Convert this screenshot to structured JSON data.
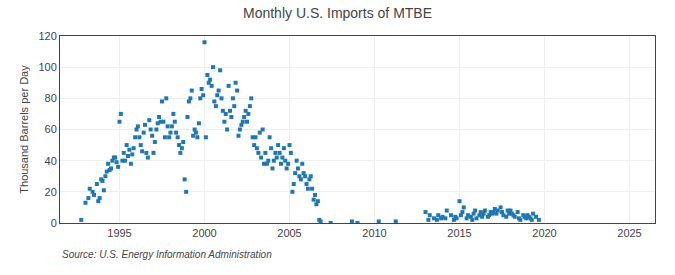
{
  "chart_data": {
    "type": "scatter",
    "title": "Monthly U.S. Imports of MTBE",
    "ylabel": "Thousand Barrels per Day",
    "annotation": "Source: U.S. Energy Information Administration",
    "marker": "square",
    "grid": true,
    "xlim": [
      1991.5,
      2026.5
    ],
    "ylim": [
      0,
      120
    ],
    "xticks": [
      1995,
      2000,
      2005,
      2010,
      2015,
      2020,
      2025
    ],
    "yticks": [
      0,
      20,
      40,
      60,
      80,
      100,
      120
    ],
    "x": [
      1992.75,
      1993.0,
      1993.17,
      1993.25,
      1993.42,
      1993.5,
      1993.67,
      1993.75,
      1993.83,
      1993.92,
      1994.0,
      1994.08,
      1994.17,
      1994.25,
      1994.33,
      1994.42,
      1994.5,
      1994.58,
      1994.67,
      1994.75,
      1994.83,
      1994.92,
      1995.0,
      1995.08,
      1995.17,
      1995.25,
      1995.33,
      1995.42,
      1995.5,
      1995.58,
      1995.67,
      1995.75,
      1995.83,
      1995.92,
      1996.0,
      1996.08,
      1996.17,
      1996.25,
      1996.33,
      1996.42,
      1996.5,
      1996.58,
      1996.67,
      1996.75,
      1996.83,
      1996.92,
      1997.0,
      1997.08,
      1997.17,
      1997.25,
      1997.33,
      1997.42,
      1997.5,
      1997.58,
      1997.67,
      1997.75,
      1997.83,
      1997.92,
      1998.0,
      1998.08,
      1998.17,
      1998.25,
      1998.33,
      1998.42,
      1998.5,
      1998.58,
      1998.67,
      1998.75,
      1998.83,
      1998.92,
      1999.0,
      1999.08,
      1999.17,
      1999.25,
      1999.33,
      1999.42,
      1999.5,
      1999.58,
      1999.67,
      1999.75,
      1999.83,
      1999.92,
      2000.0,
      2000.08,
      2000.17,
      2000.25,
      2000.33,
      2000.42,
      2000.5,
      2000.58,
      2000.67,
      2000.75,
      2000.83,
      2000.92,
      2001.0,
      2001.08,
      2001.17,
      2001.25,
      2001.33,
      2001.42,
      2001.5,
      2001.58,
      2001.67,
      2001.75,
      2001.83,
      2001.92,
      2002.0,
      2002.08,
      2002.17,
      2002.25,
      2002.33,
      2002.42,
      2002.5,
      2002.58,
      2002.67,
      2002.75,
      2002.83,
      2002.92,
      2003.0,
      2003.08,
      2003.17,
      2003.25,
      2003.33,
      2003.42,
      2003.5,
      2003.58,
      2003.67,
      2003.75,
      2003.83,
      2003.92,
      2004.0,
      2004.08,
      2004.17,
      2004.25,
      2004.33,
      2004.42,
      2004.5,
      2004.58,
      2004.67,
      2004.75,
      2004.83,
      2004.92,
      2005.0,
      2005.08,
      2005.17,
      2005.25,
      2005.33,
      2005.42,
      2005.5,
      2005.58,
      2005.67,
      2005.75,
      2005.83,
      2005.92,
      2006.0,
      2006.08,
      2006.17,
      2006.25,
      2006.33,
      2006.42,
      2006.5,
      2006.58,
      2006.67,
      2006.75,
      2006.83,
      2007.42,
      2008.67,
      2009.0,
      2010.25,
      2011.25,
      2013.0,
      2013.17,
      2013.25,
      2013.5,
      2013.67,
      2013.75,
      2013.92,
      2014.0,
      2014.17,
      2014.25,
      2014.5,
      2014.67,
      2014.75,
      2014.83,
      2015.0,
      2015.08,
      2015.17,
      2015.25,
      2015.42,
      2015.5,
      2015.67,
      2015.75,
      2015.83,
      2015.92,
      2016.0,
      2016.17,
      2016.25,
      2016.33,
      2016.42,
      2016.5,
      2016.67,
      2016.75,
      2016.83,
      2016.92,
      2017.0,
      2017.08,
      2017.17,
      2017.25,
      2017.42,
      2017.5,
      2017.58,
      2017.75,
      2017.83,
      2017.92,
      2018.0,
      2018.08,
      2018.17,
      2018.25,
      2018.42,
      2018.5,
      2018.58,
      2018.75,
      2018.83,
      2018.92,
      2019.0,
      2019.08,
      2019.17,
      2019.25,
      2019.33,
      2019.5,
      2019.67
    ],
    "values": [
      2,
      13,
      16,
      22,
      20,
      18,
      25,
      14,
      16,
      28,
      27,
      21,
      30,
      33,
      38,
      34,
      35,
      40,
      42,
      42,
      39,
      36,
      65,
      70,
      40,
      45,
      40,
      50,
      43,
      47,
      38,
      44,
      48,
      55,
      60,
      62,
      55,
      50,
      46,
      58,
      63,
      45,
      42,
      66,
      60,
      56,
      45,
      52,
      60,
      64,
      68,
      65,
      78,
      65,
      55,
      80,
      62,
      55,
      58,
      62,
      70,
      65,
      58,
      55,
      50,
      45,
      48,
      52,
      28,
      20,
      68,
      78,
      80,
      85,
      56,
      60,
      58,
      55,
      64,
      80,
      86,
      82,
      116,
      55,
      95,
      90,
      92,
      88,
      100,
      78,
      75,
      82,
      85,
      98,
      80,
      72,
      65,
      70,
      60,
      88,
      72,
      68,
      80,
      75,
      90,
      85,
      56,
      60,
      63,
      65,
      68,
      72,
      65,
      70,
      75,
      80,
      55,
      50,
      55,
      48,
      45,
      58,
      42,
      60,
      38,
      45,
      38,
      40,
      55,
      48,
      35,
      40,
      45,
      42,
      50,
      45,
      38,
      42,
      48,
      40,
      35,
      38,
      50,
      45,
      20,
      25,
      32,
      40,
      35,
      30,
      28,
      38,
      32,
      30,
      25,
      22,
      28,
      30,
      22,
      15,
      18,
      12,
      14,
      2,
      1,
      0,
      1,
      0,
      1,
      1,
      7,
      2,
      5,
      3,
      2,
      5,
      3,
      4,
      3,
      8,
      5,
      2,
      4,
      3,
      14,
      5,
      7,
      10,
      3,
      5,
      4,
      2,
      6,
      8,
      3,
      5,
      7,
      4,
      6,
      8,
      4,
      5,
      7,
      6,
      7,
      9,
      6,
      8,
      10,
      7,
      5,
      4,
      8,
      6,
      8,
      6,
      5,
      4,
      7,
      3,
      2,
      5,
      4,
      3,
      5,
      4,
      3,
      2,
      6,
      4,
      2
    ]
  }
}
